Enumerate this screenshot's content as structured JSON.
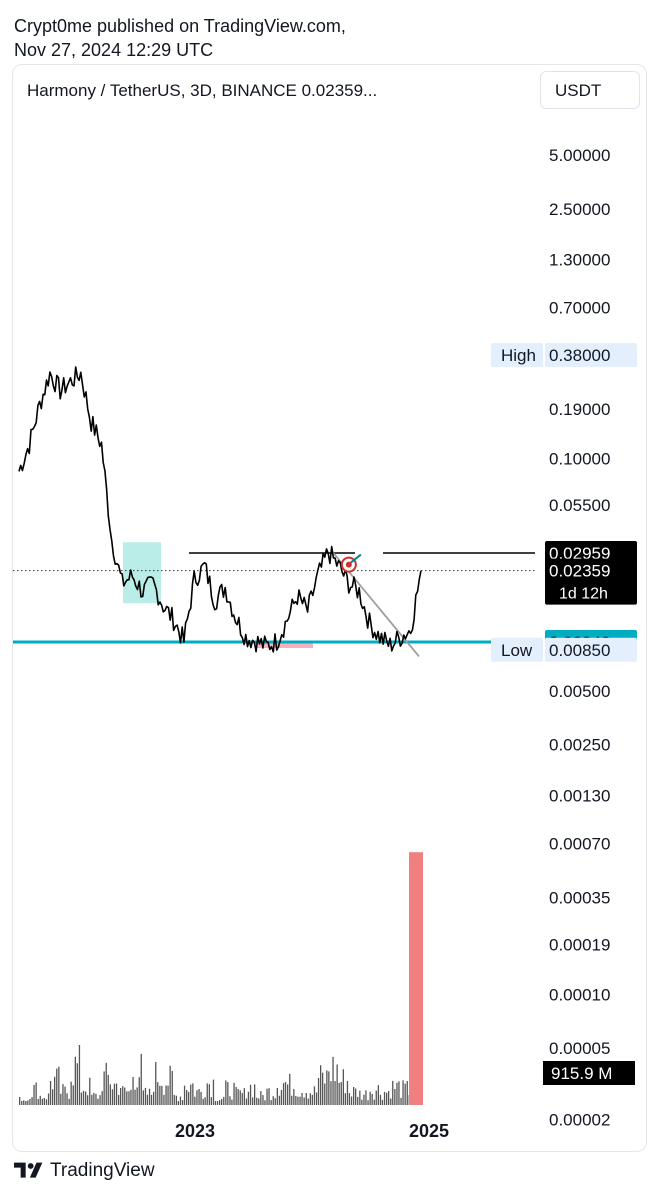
{
  "header": {
    "publisher_line": "Crypt0me published on TradingView.com,",
    "date_line": "Nov 27, 2024 12:29 UTC"
  },
  "chart": {
    "title": "Harmony / TetherUS, 3D, BINANCE  0.02359...",
    "currency_button": "USDT"
  },
  "footer": {
    "brand": "TradingView",
    "logo_icon": "tradingview-logo-icon"
  },
  "colors": {
    "price_line": "#000000",
    "support_line": "#00acc1",
    "accent_box_green": "#b2ebe4",
    "accent_box_red": "#f7a7b8",
    "volume_bar": "#555555",
    "volume_highlight": "#f08080",
    "label_light_bg": "#e3effd",
    "label_dark_bg": "#000000",
    "label_cyan_bg": "#00acc1"
  },
  "chart_data": {
    "type": "line",
    "title": "Harmony / TetherUS, 3D, BINANCE",
    "y_scale": "log",
    "x_tick_labels": [
      "2023",
      "2025"
    ],
    "y_tick_labels": [
      "5.00000",
      "2.50000",
      "1.30000",
      "0.70000",
      "0.19000",
      "0.10000",
      "0.05500",
      "0.00500",
      "0.00250",
      "0.00130",
      "0.00070",
      "0.00035",
      "0.00019",
      "0.00010",
      "0.00005",
      "0.00002"
    ],
    "y_ticks": [
      5.0,
      2.5,
      1.3,
      0.7,
      0.19,
      0.1,
      0.055,
      0.005,
      0.0025,
      0.0013,
      0.0007,
      0.00035,
      0.00019,
      0.0001,
      5e-05,
      2e-05
    ],
    "price_series": {
      "x": [
        "2021-08",
        "2021-09",
        "2021-10",
        "2021-11",
        "2021-12",
        "2022-01",
        "2022-02",
        "2022-03",
        "2022-04",
        "2022-05",
        "2022-06",
        "2022-07",
        "2022-08",
        "2022-09",
        "2022-10",
        "2022-11",
        "2022-12",
        "2023-01",
        "2023-02",
        "2023-03",
        "2023-04",
        "2023-05",
        "2023-06",
        "2023-07",
        "2023-08",
        "2023-09",
        "2023-10",
        "2023-11",
        "2023-12",
        "2024-01",
        "2024-02",
        "2024-03",
        "2024-04",
        "2024-05",
        "2024-06",
        "2024-07",
        "2024-08",
        "2024-09",
        "2024-10",
        "2024-11"
      ],
      "close": [
        0.085,
        0.12,
        0.2,
        0.3,
        0.24,
        0.27,
        0.3,
        0.16,
        0.12,
        0.035,
        0.02,
        0.022,
        0.018,
        0.02,
        0.015,
        0.0125,
        0.0095,
        0.021,
        0.025,
        0.016,
        0.019,
        0.013,
        0.01,
        0.0095,
        0.0089,
        0.0095,
        0.0125,
        0.017,
        0.014,
        0.022,
        0.03,
        0.025,
        0.02,
        0.018,
        0.012,
        0.01,
        0.009,
        0.01,
        0.011,
        0.0236
      ]
    },
    "horizontal_levels": [
      {
        "name": "resistance",
        "value": 0.0296
      },
      {
        "name": "last_price",
        "value": 0.02359
      },
      {
        "name": "support",
        "value": 0.0094
      }
    ],
    "price_labels": [
      {
        "text": "High",
        "value_text": "0.38000",
        "value": 0.38
      },
      {
        "text": "",
        "value_text": "0.02959",
        "value": 0.0296
      },
      {
        "text": "1d 12h",
        "value_text": "0.02359",
        "value": 0.02359
      },
      {
        "text": "",
        "value_text": "0.00940",
        "value": 0.0094
      },
      {
        "text": "Low",
        "value_text": "0.00850",
        "value": 0.0085
      }
    ],
    "volume_label": "915.9 M",
    "volume_relative": [
      0.12,
      0.35,
      0.2,
      0.55,
      0.3,
      0.85,
      0.4,
      0.2,
      0.6,
      0.45,
      0.3,
      0.75,
      0.25,
      0.65,
      0.55,
      0.2,
      0.45,
      0.3,
      0.5,
      0.15,
      0.35,
      0.25,
      0.4,
      0.2,
      0.3,
      0.5,
      0.45,
      0.35,
      0.3,
      0.6,
      0.8,
      0.55,
      0.3,
      0.25,
      0.35,
      0.3,
      0.4,
      0.35,
      0.3,
      3.2
    ],
    "grid": false,
    "legend": "none"
  }
}
